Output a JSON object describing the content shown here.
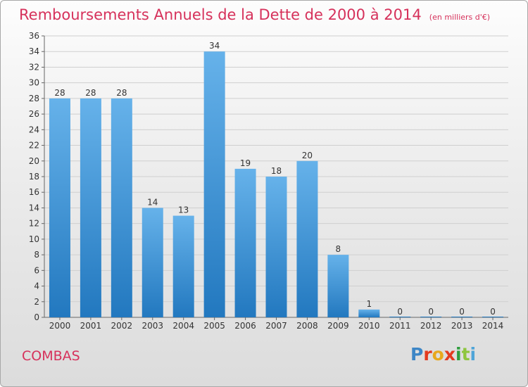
{
  "header": {
    "title": "Remboursements Annuels de la Dette de 2000 à 2014",
    "unit": "(en milliers d'€)"
  },
  "footer": {
    "commune": "COMBAS",
    "brand": "Proxiti",
    "brand_colors": [
      "#3d86c6",
      "#e23a1f",
      "#e8a81c",
      "#e23a1f",
      "#2e9e3e",
      "#8ec63f",
      "#4fa5d8"
    ]
  },
  "colors": {
    "accent": "#d6315b",
    "bar_top": "#66b2ea",
    "bar_bottom": "#2278bf",
    "axis": "#666666",
    "grid": "#cfcfcf"
  },
  "chart_data": {
    "type": "bar",
    "title": "Remboursements Annuels de la Dette de 2000 à 2014",
    "subtitle": "(en milliers d'€)",
    "xlabel": "",
    "ylabel": "",
    "categories": [
      "2000",
      "2001",
      "2002",
      "2003",
      "2004",
      "2005",
      "2006",
      "2007",
      "2008",
      "2009",
      "2010",
      "2011",
      "2012",
      "2013",
      "2014"
    ],
    "values": [
      28,
      28,
      28,
      14,
      13,
      34,
      19,
      18,
      20,
      8,
      1,
      0,
      0,
      0,
      0
    ],
    "ylim": [
      0,
      36
    ],
    "yticks": [
      0,
      2,
      4,
      6,
      8,
      10,
      12,
      14,
      16,
      18,
      20,
      22,
      24,
      26,
      28,
      30,
      32,
      34,
      36
    ],
    "grid": true,
    "legend": "none"
  }
}
